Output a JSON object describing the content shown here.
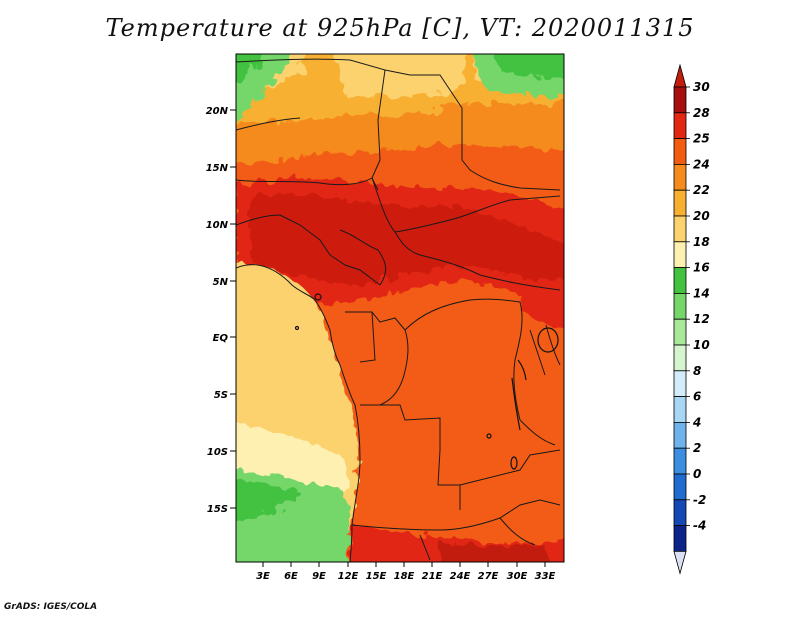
{
  "title": "Temperature at 925hPa [C], VT: 2020011315",
  "footer": "GrADS: IGES/COLA",
  "map": {
    "lat_labels": [
      "20N",
      "15N",
      "10N",
      "5N",
      "EQ",
      "5S",
      "10S",
      "15S"
    ],
    "lon_labels": [
      "3E",
      "6E",
      "9E",
      "12E",
      "15E",
      "18E",
      "21E",
      "24E",
      "27E",
      "30E",
      "33E"
    ]
  },
  "colorbar": {
    "labels": [
      "30",
      "28",
      "25",
      "24",
      "22",
      "20",
      "18",
      "16",
      "14",
      "12",
      "10",
      "8",
      "6",
      "4",
      "2",
      "0",
      "-2",
      "-4"
    ],
    "colors": [
      "#a50f0f",
      "#e22812",
      "#f25c12",
      "#f58b1c",
      "#f8b033",
      "#fbd26e",
      "#fdf0b0",
      "#43c23f",
      "#75d66a",
      "#a8e89a",
      "#d6f5cf",
      "#d3ecfb",
      "#a8d6f5",
      "#6fb2ec",
      "#3c8fe0",
      "#1f6bd0",
      "#1448b4",
      "#0c2387"
    ],
    "colors_ends": {
      "top": "#c41c0d",
      "bottom": "#dde0f5"
    }
  }
}
